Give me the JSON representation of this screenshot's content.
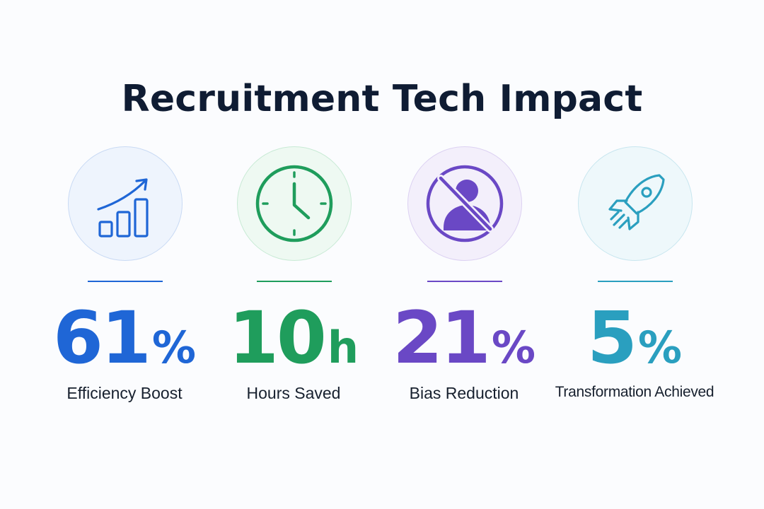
{
  "title": "Recruitment Tech Impact",
  "stats": [
    {
      "number": "61",
      "unit": "%",
      "label": "Efficiency Boost",
      "icon": "growth-chart-icon",
      "color": "#1f66d6",
      "circle_fill": "#eef4fd",
      "circle_border": "#c9daf4"
    },
    {
      "number": "10",
      "unit": "h",
      "label": "Hours Saved",
      "icon": "clock-icon",
      "color": "#1f9d5c",
      "circle_fill": "#eef9f2",
      "circle_border": "#c8ead5"
    },
    {
      "number": "21",
      "unit": "%",
      "label": "Bias Reduction",
      "icon": "no-bias-icon",
      "color": "#6a48c5",
      "circle_fill": "#f3effb",
      "circle_border": "#dcd1f2"
    },
    {
      "number": "5",
      "unit": "%",
      "label": "Transformation Achieved",
      "icon": "rocket-icon",
      "color": "#2a9fbf",
      "circle_fill": "#eef8fb",
      "circle_border": "#c8e6ef"
    }
  ]
}
